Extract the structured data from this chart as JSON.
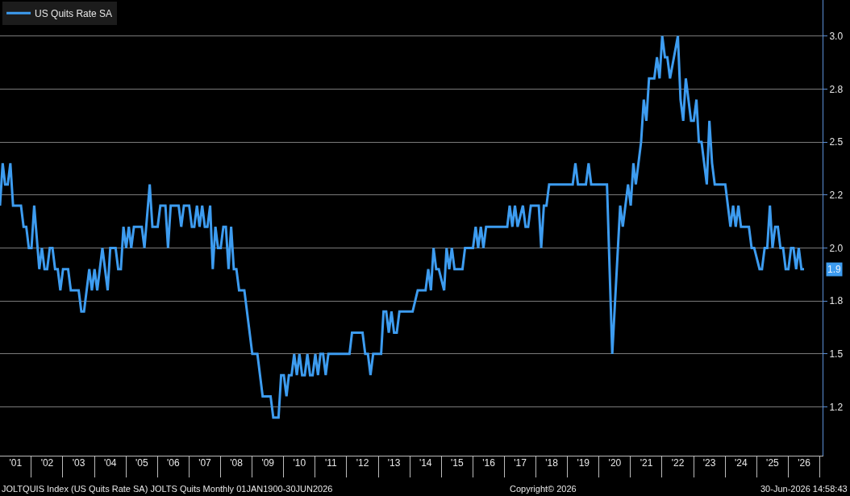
{
  "chart_data": {
    "type": "line",
    "legend": "top left",
    "grid": "y",
    "xlim": [
      "2001-01-01",
      "2027-02-01"
    ],
    "ylim": [
      1.02,
      3.17
    ],
    "xticks": [
      {
        "value": "2001-07-01",
        "label": "'01"
      },
      {
        "value": "2002-07-01",
        "label": "'02"
      },
      {
        "value": "2003-07-01",
        "label": "'03"
      },
      {
        "value": "2004-07-01",
        "label": "'04"
      },
      {
        "value": "2005-07-01",
        "label": "'05"
      },
      {
        "value": "2006-07-01",
        "label": "'06"
      },
      {
        "value": "2007-07-01",
        "label": "'07"
      },
      {
        "value": "2008-07-01",
        "label": "'08"
      },
      {
        "value": "2009-07-01",
        "label": "'09"
      },
      {
        "value": "2010-07-01",
        "label": "'10"
      },
      {
        "value": "2011-07-01",
        "label": "'11"
      },
      {
        "value": "2012-07-01",
        "label": "'12"
      },
      {
        "value": "2013-07-01",
        "label": "'13"
      },
      {
        "value": "2014-07-01",
        "label": "'14"
      },
      {
        "value": "2015-07-01",
        "label": "'15"
      },
      {
        "value": "2016-07-01",
        "label": "'16"
      },
      {
        "value": "2017-07-01",
        "label": "'17"
      },
      {
        "value": "2018-07-01",
        "label": "'18"
      },
      {
        "value": "2019-07-01",
        "label": "'19"
      },
      {
        "value": "2020-07-01",
        "label": "'20"
      },
      {
        "value": "2021-07-01",
        "label": "'21"
      },
      {
        "value": "2022-07-01",
        "label": "'22"
      },
      {
        "value": "2023-07-01",
        "label": "'23"
      },
      {
        "value": "2024-07-01",
        "label": "'24"
      },
      {
        "value": "2025-07-01",
        "label": "'25"
      },
      {
        "value": "2026-07-01",
        "label": "'26"
      }
    ],
    "yticks": [
      {
        "value": 1.25,
        "label": "1.2"
      },
      1.5,
      {
        "value": 1.75,
        "label": "1.8"
      },
      {
        "value": 2.0,
        "label": "2.0"
      },
      {
        "value": 2.25,
        "label": "2.2"
      },
      2.5,
      {
        "value": 2.75,
        "label": "2.8"
      },
      {
        "value": 3.0,
        "label": "3.0"
      }
    ],
    "x": [
      "2001-01",
      "2001-02",
      "2001-03",
      "2001-04",
      "2001-05",
      "2001-06",
      "2001-09",
      "2001-10",
      "2001-11",
      "2001-12",
      "2002-01",
      "2002-02",
      "2002-04",
      "2002-05",
      "2002-06",
      "2002-07",
      "2002-08",
      "2002-09",
      "2002-10",
      "2002-11",
      "2002-12",
      "2003-01",
      "2003-03",
      "2003-04",
      "2003-07",
      "2003-08",
      "2003-09",
      "2003-11",
      "2003-12",
      "2004-01",
      "2004-02",
      "2004-04",
      "2004-06",
      "2004-07",
      "2004-09",
      "2004-10",
      "2004-11",
      "2004-12",
      "2005-01",
      "2005-02",
      "2005-03",
      "2005-04",
      "2005-07",
      "2005-08",
      "2005-10",
      "2005-11",
      "2006-01",
      "2006-02",
      "2006-04",
      "2006-05",
      "2006-06",
      "2006-09",
      "2006-10",
      "2006-11",
      "2007-01",
      "2007-02",
      "2007-03",
      "2007-04",
      "2007-05",
      "2007-06",
      "2007-07",
      "2007-08",
      "2007-09",
      "2007-10",
      "2007-11",
      "2007-12",
      "2008-01",
      "2008-02",
      "2008-03",
      "2008-04",
      "2008-05",
      "2008-06",
      "2008-07",
      "2008-08",
      "2008-10",
      "2009-01",
      "2009-03",
      "2009-05",
      "2009-08",
      "2009-09",
      "2009-11",
      "2009-12",
      "2010-01",
      "2010-02",
      "2010-03",
      "2010-04",
      "2010-05",
      "2010-06",
      "2010-07",
      "2010-08",
      "2010-09",
      "2010-10",
      "2010-11",
      "2010-12",
      "2011-01",
      "2011-02",
      "2011-03",
      "2011-04",
      "2011-05",
      "2011-06",
      "2012-02",
      "2012-03",
      "2012-07",
      "2012-08",
      "2012-09",
      "2012-10",
      "2012-11",
      "2013-02",
      "2013-03",
      "2013-04",
      "2013-05",
      "2013-06",
      "2013-07",
      "2013-08",
      "2013-09",
      "2014-02",
      "2014-04",
      "2014-07",
      "2014-08",
      "2014-09",
      "2014-10",
      "2014-11",
      "2014-12",
      "2015-02",
      "2015-03",
      "2015-04",
      "2015-05",
      "2015-06",
      "2015-09",
      "2015-10",
      "2016-01",
      "2016-02",
      "2016-03",
      "2016-04",
      "2016-05",
      "2016-06",
      "2017-02",
      "2017-03",
      "2017-04",
      "2017-05",
      "2017-06",
      "2017-08",
      "2017-09",
      "2017-10",
      "2017-11",
      "2018-02",
      "2018-03",
      "2018-04",
      "2018-05",
      "2018-06",
      "2019-03",
      "2019-04",
      "2019-05",
      "2019-08",
      "2019-09",
      "2019-10",
      "2020-04",
      "2020-06",
      "2020-09",
      "2020-10",
      "2020-12",
      "2021-01",
      "2021-02",
      "2021-03",
      "2021-05",
      "2021-06",
      "2021-07",
      "2021-08",
      "2021-10",
      "2021-11",
      "2021-12",
      "2022-01",
      "2022-02",
      "2022-03",
      "2022-04",
      "2022-07",
      "2022-08",
      "2022-09",
      "2022-10",
      "2022-12",
      "2023-01",
      "2023-02",
      "2023-03",
      "2023-04",
      "2023-06",
      "2023-07",
      "2023-08",
      "2023-09",
      "2024-01",
      "2024-03",
      "2024-04",
      "2024-05",
      "2024-06",
      "2024-07",
      "2024-10",
      "2024-11",
      "2024-12",
      "2025-02",
      "2025-03",
      "2025-04",
      "2025-05",
      "2025-06",
      "2025-07",
      "2025-08",
      "2025-09",
      "2025-10",
      "2025-11",
      "2025-12",
      "2026-01",
      "2026-02",
      "2026-03",
      "2026-04",
      "2026-05",
      "2026-06",
      "2026-07"
    ],
    "series": [
      {
        "name": "US Quits Rate SA",
        "color": "#3d9cf0",
        "values": [
          2.2,
          2.4,
          2.3,
          2.3,
          2.4,
          2.2,
          2.2,
          2.1,
          2.1,
          2.0,
          2.0,
          2.2,
          1.9,
          2.0,
          1.9,
          1.9,
          2.0,
          2.0,
          1.9,
          1.9,
          1.8,
          1.9,
          1.9,
          1.8,
          1.8,
          1.7,
          1.7,
          1.9,
          1.8,
          1.9,
          1.8,
          2.0,
          1.8,
          2.0,
          2.0,
          1.9,
          1.9,
          2.1,
          2.0,
          2.1,
          2.0,
          2.1,
          2.1,
          2.0,
          2.3,
          2.1,
          2.1,
          2.2,
          2.2,
          2.0,
          2.2,
          2.2,
          2.1,
          2.2,
          2.2,
          2.1,
          2.1,
          2.2,
          2.1,
          2.2,
          2.1,
          2.1,
          2.2,
          1.9,
          2.1,
          2.0,
          2.0,
          2.1,
          2.1,
          1.9,
          2.1,
          1.9,
          1.9,
          1.8,
          1.8,
          1.5,
          1.5,
          1.3,
          1.3,
          1.2,
          1.2,
          1.4,
          1.4,
          1.3,
          1.4,
          1.4,
          1.5,
          1.4,
          1.5,
          1.4,
          1.4,
          1.5,
          1.4,
          1.4,
          1.5,
          1.4,
          1.5,
          1.5,
          1.4,
          1.5,
          1.5,
          1.6,
          1.6,
          1.5,
          1.5,
          1.4,
          1.5,
          1.5,
          1.7,
          1.7,
          1.6,
          1.7,
          1.6,
          1.6,
          1.7,
          1.7,
          1.8,
          1.8,
          1.9,
          1.8,
          2.0,
          1.9,
          1.9,
          1.8,
          2.0,
          1.9,
          2.0,
          1.9,
          1.9,
          2.0,
          2.0,
          2.1,
          2.0,
          2.1,
          2.0,
          2.1,
          2.1,
          2.2,
          2.1,
          2.2,
          2.1,
          2.2,
          2.1,
          2.1,
          2.2,
          2.2,
          2.0,
          2.2,
          2.2,
          2.3,
          2.3,
          2.4,
          2.3,
          2.3,
          2.4,
          2.3,
          2.3,
          1.5,
          2.2,
          2.1,
          2.3,
          2.2,
          2.4,
          2.3,
          2.5,
          2.7,
          2.6,
          2.8,
          2.8,
          2.9,
          2.8,
          3.0,
          2.9,
          2.9,
          2.8,
          3.0,
          2.7,
          2.6,
          2.8,
          2.6,
          2.6,
          2.7,
          2.5,
          2.5,
          2.3,
          2.6,
          2.4,
          2.3,
          2.3,
          2.1,
          2.2,
          2.1,
          2.2,
          2.1,
          2.1,
          2.0,
          2.0,
          1.9,
          1.9,
          2.0,
          2.0,
          2.2,
          2.0,
          2.1,
          2.1,
          2.0,
          2.0,
          1.9,
          1.9,
          2.0,
          2.0,
          1.9,
          2.0,
          1.9,
          1.9
        ]
      }
    ],
    "annotations": [
      "1.9",
      "JOLTQUIS Index (US Quits Rate SA) JOLTS Quits Monthly 01JAN1900-30JUN2026",
      "Copyright© 2026",
      "30-Jun-2026 14:58:43"
    ]
  }
}
